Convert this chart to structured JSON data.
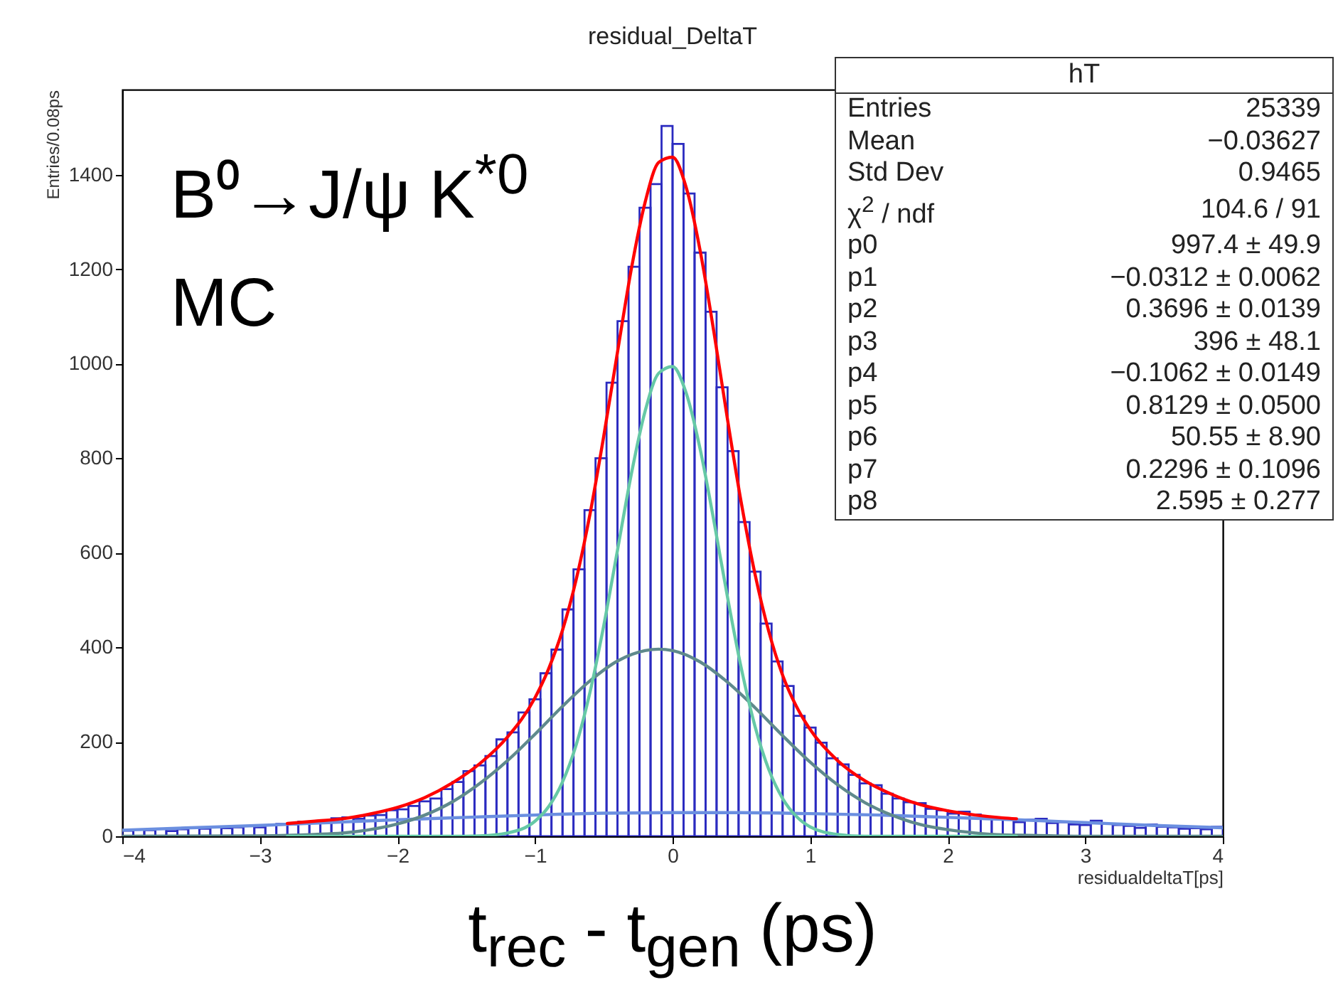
{
  "chart_data": {
    "type": "histogram",
    "title": "residual_DeltaT",
    "xlabel": "residualdeltaT[ps]",
    "ylabel": "Entries/0.08ps",
    "xlim": [
      -4,
      4
    ],
    "xticks": [
      -4,
      -3,
      -2,
      -1,
      0,
      1,
      2,
      3,
      4
    ],
    "ylim": [
      0,
      1580
    ],
    "yticks": [
      0,
      200,
      400,
      600,
      800,
      1000,
      1200,
      1400
    ],
    "color": "#2b2bc0",
    "bins": [
      -4,
      -3.92,
      -3.84,
      -3.76,
      -3.68,
      -3.6,
      -3.52,
      -3.44,
      -3.36,
      -3.28,
      -3.2,
      -3.12,
      -3.04,
      -2.96,
      -2.88,
      -2.8,
      -2.72,
      -2.64,
      -2.56,
      -2.48,
      -2.4,
      -2.32,
      -2.24,
      -2.16,
      -2.08,
      -2,
      -1.92,
      -1.84,
      -1.76,
      -1.68,
      -1.6,
      -1.52,
      -1.44,
      -1.36,
      -1.28,
      -1.2,
      -1.12,
      -1.04,
      -0.96,
      -0.88,
      -0.8,
      -0.72,
      -0.64,
      -0.56,
      -0.48,
      -0.4,
      -0.32,
      -0.24,
      -0.16,
      -0.08,
      0,
      0.08,
      0.16,
      0.24,
      0.32,
      0.4,
      0.48,
      0.56,
      0.64,
      0.72,
      0.8,
      0.88,
      0.96,
      1.04,
      1.12,
      1.2,
      1.28,
      1.36,
      1.44,
      1.52,
      1.6,
      1.68,
      1.76,
      1.84,
      1.92,
      2,
      2.08,
      2.16,
      2.24,
      2.32,
      2.4,
      2.48,
      2.56,
      2.64,
      2.72,
      2.8,
      2.88,
      2.96,
      3.04,
      3.12,
      3.2,
      3.28,
      3.36,
      3.44,
      3.52,
      3.6,
      3.68,
      3.76,
      3.84,
      3.92,
      4
    ],
    "values": [
      12,
      14,
      13,
      16,
      11,
      15,
      18,
      16,
      20,
      17,
      19,
      22,
      19,
      23,
      26,
      25,
      31,
      28,
      30,
      38,
      40,
      37,
      44,
      45,
      55,
      57,
      64,
      74,
      80,
      100,
      115,
      138,
      150,
      170,
      205,
      220,
      262,
      290,
      345,
      395,
      480,
      565,
      690,
      800,
      960,
      1090,
      1205,
      1330,
      1380,
      1503,
      1465,
      1360,
      1235,
      1110,
      950,
      815,
      665,
      560,
      450,
      370,
      318,
      255,
      230,
      198,
      165,
      152,
      130,
      112,
      108,
      90,
      80,
      72,
      70,
      58,
      55,
      48,
      52,
      46,
      40,
      38,
      36,
      30,
      35,
      37,
      28,
      30,
      25,
      24,
      33,
      26,
      24,
      22,
      18,
      25,
      20,
      19,
      16,
      17,
      15,
      20
    ],
    "series": [
      {
        "type": "line",
        "color": "#6b8fe0",
        "x": [
          -4,
          -3.5,
          -3,
          -2.5,
          -2,
          -1.5,
          -1,
          -0.5,
          0,
          0.5,
          1,
          1.5,
          2,
          2.5,
          3,
          3.5,
          4
        ],
        "values": [
          13,
          18,
          23,
          29,
          35,
          40,
          45,
          49,
          50,
          50,
          48,
          45,
          40,
          35,
          29,
          23,
          18
        ]
      },
      {
        "type": "line",
        "color": "#5f8a8c",
        "x": [
          -4,
          -3,
          -2.6,
          -2.4,
          -2.2,
          -2,
          -1.8,
          -1.6,
          -1.4,
          -1.2,
          -1,
          -0.8,
          -0.6,
          -0.4,
          -0.2,
          -0.1,
          0,
          0.2,
          0.4,
          0.6,
          0.8,
          1,
          1.2,
          1.4,
          1.6,
          1.8,
          2,
          2.2,
          2.4,
          2.6,
          3,
          4
        ],
        "values": [
          0,
          1,
          4,
          7,
          14,
          26,
          45,
          73,
          112,
          160,
          216,
          275,
          329,
          371,
          393,
          396,
          393,
          369,
          326,
          272,
          213,
          157,
          109,
          71,
          44,
          25,
          14,
          7,
          3,
          2,
          0,
          0
        ]
      },
      {
        "type": "line",
        "color": "#66c9a6",
        "x": [
          -2.8,
          -1.6,
          -1.4,
          -1.2,
          -1,
          -0.9,
          -0.8,
          -0.7,
          -0.6,
          -0.5,
          -0.4,
          -0.3,
          -0.2,
          -0.1,
          0,
          0.1,
          0.2,
          0.3,
          0.4,
          0.5,
          0.6,
          0.7,
          0.8,
          0.9,
          1,
          1.2,
          1.4,
          2.5
        ],
        "values": [
          0,
          0,
          1,
          7,
          32,
          63,
          115,
          194,
          305,
          446,
          606,
          766,
          899,
          980,
          994,
          937,
          820,
          668,
          505,
          355,
          232,
          141,
          80,
          42,
          20,
          4,
          0,
          0
        ]
      },
      {
        "type": "line",
        "color": "#ff0000",
        "x": [
          -2.8,
          -2.6,
          -2.4,
          -2.2,
          -2,
          -1.8,
          -1.6,
          -1.4,
          -1.2,
          -1,
          -0.9,
          -0.8,
          -0.7,
          -0.6,
          -0.5,
          -0.4,
          -0.3,
          -0.2,
          -0.1,
          0,
          0.1,
          0.2,
          0.3,
          0.4,
          0.5,
          0.6,
          0.7,
          0.8,
          0.9,
          1,
          1.2,
          1.4,
          1.6,
          1.8,
          2,
          2.2,
          2.4,
          2.5
        ],
        "values": [
          27,
          32,
          37,
          47,
          61,
          82,
          113,
          154,
          210,
          293,
          355,
          436,
          544,
          682,
          847,
          1025,
          1200,
          1341,
          1426,
          1437,
          1372,
          1240,
          1068,
          881,
          705,
          554,
          433,
          341,
          275,
          226,
          160,
          117,
          88,
          67,
          54,
          45,
          39,
          37
        ]
      }
    ],
    "annotations": [
      "B⁰→J/ψ K$^{*0}$",
      "MC",
      "t$_{rec}$ - t$_{gen}$ (ps)",
      "hT",
      "Entries",
      "25339",
      "Mean",
      "−0.03627",
      "Std Dev",
      "0.9465",
      "χ$^{2}$ / ndf",
      "104.6 / 91",
      "p0",
      "997.4 ± 49.9",
      "p1",
      "−0.0312 ± 0.0062",
      "p2",
      "0.3696 ± 0.0139",
      "p3",
      "396 ± 48.1",
      "p4",
      "−0.1062 ± 0.0149",
      "p5",
      "0.8129 ± 0.0500",
      "p6",
      "50.55 ± 8.90",
      "p7",
      "0.2296 ± 0.1096",
      "p8",
      "2.595 ± 0.277"
    ]
  }
}
